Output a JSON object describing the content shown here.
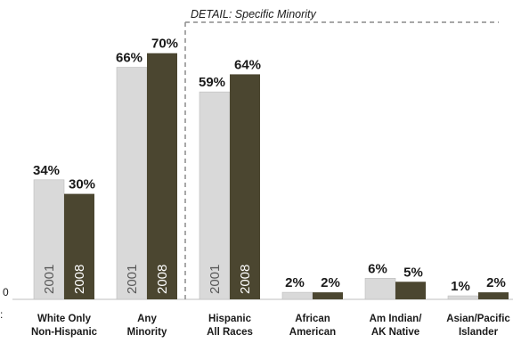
{
  "chart_data": {
    "type": "bar",
    "categories": [
      [
        "White Only",
        "Non-Hispanic"
      ],
      [
        "Any",
        "Minority"
      ],
      [
        "Hispanic",
        "All Races"
      ],
      [
        "African",
        "American"
      ],
      [
        "Am Indian/",
        "AK Native"
      ],
      [
        "Asian/Pacific",
        "Islander"
      ]
    ],
    "series": [
      {
        "name": "2001",
        "values": [
          34,
          66,
          59,
          2,
          6,
          1
        ],
        "color": "#d9d9d9"
      },
      {
        "name": "2008",
        "values": [
          30,
          70,
          64,
          2,
          5,
          2
        ],
        "color": "#4b4630"
      }
    ],
    "value_suffix": "%",
    "series_labels_inside_bars": [
      0,
      1,
      2
    ],
    "y_axis_tick_label": "0",
    "ylim": [
      0,
      75
    ],
    "annotation": "DETAIL: Specific Minority",
    "annotation_groups": [
      2,
      3,
      4,
      5
    ],
    "grid": false,
    "legend": "none"
  }
}
